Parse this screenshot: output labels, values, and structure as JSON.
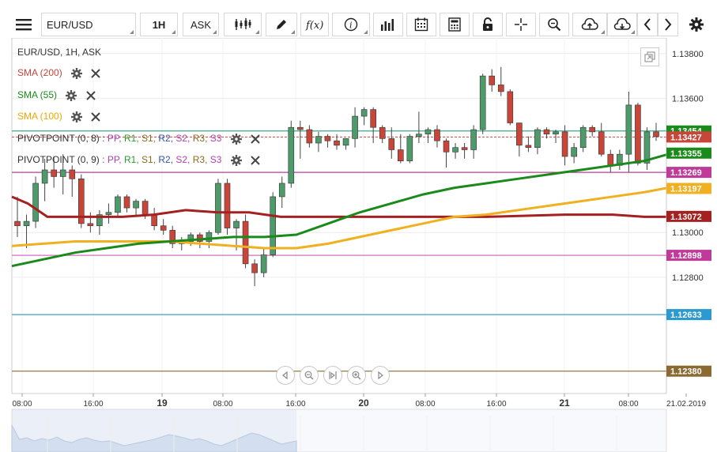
{
  "toolbar": {
    "menu_icon": "hamburger-menu-icon",
    "symbol": "EUR/USD",
    "timeframe": "1H",
    "price_type": "ASK",
    "buttons": [
      "candlestick-icon",
      "draw-pencil-icon",
      "function-icon",
      "info-icon",
      "bar-chart-icon",
      "calendar-icon",
      "calculator-icon",
      "lock-icon",
      "crosshair-icon",
      "zoom-icon",
      "cloud-upload-icon",
      "cloud-download-icon",
      "chevron-left-icon",
      "chevron-right-icon",
      "gear-icon"
    ]
  },
  "legend": {
    "title": "EUR/USD, 1H, ASK",
    "sma200": "SMA (200)",
    "sma55": "SMA (55)",
    "sma100": "SMA (100)",
    "pivot8_name": "PIVOTPOINT (0, 8)",
    "pivot9_name": "PIVOTPOINT (0, 9)",
    "pivot_sep": ":",
    "pivot_items": [
      "PP,",
      "R1,",
      "S1,",
      "R2,",
      "S2,",
      "R3,",
      "S3"
    ],
    "pivot_colors": [
      "#b040b0",
      "#2a9a2a",
      "#8a6a20",
      "#3355aa",
      "#b040b0",
      "#8a6a20",
      "#b040b0"
    ]
  },
  "colors": {
    "up": "#4e9a6a",
    "down": "#c8453a",
    "sma200": "#a52020",
    "sma55": "#1a8a1a",
    "sma100": "#f0b020"
  },
  "chart_data": {
    "type": "candlestick",
    "symbol": "EUR/USD",
    "timeframe": "1H",
    "y_ticks": [
      "1.13800",
      "1.13600",
      "1.13000",
      "1.12800"
    ],
    "ylim": [
      1.1228,
      1.1387
    ],
    "x_labels": [
      "08:00",
      "16:00",
      "19",
      "08:00",
      "16:00",
      "20",
      "08:00",
      "16:00",
      "21",
      "08:00",
      "21.02.2019"
    ],
    "price_tags": [
      {
        "label": "1.13454",
        "value": 1.13454,
        "color": "#1a8a1a",
        "line": "#3aaa8a"
      },
      {
        "label": "1.13427",
        "value": 1.13427,
        "color": "#c8453a",
        "line": ""
      },
      {
        "label": "1.13355",
        "value": 1.13355,
        "color": "#1a8a1a",
        "line": ""
      },
      {
        "label": "1.13269",
        "value": 1.13269,
        "color": "#c03a9a",
        "line": "#c03a9a"
      },
      {
        "label": "1.13197",
        "value": 1.13197,
        "color": "#f0b020",
        "line": ""
      },
      {
        "label": "1.13072",
        "value": 1.13072,
        "color": "#a52020",
        "line": ""
      },
      {
        "label": "1.12898",
        "value": 1.12898,
        "color": "#c03a9a",
        "line": "#d070c0"
      },
      {
        "label": "1.12633",
        "value": 1.12633,
        "color": "#2a9ad0",
        "line": "#3aa0c0"
      },
      {
        "label": "1.12380",
        "value": 1.1238,
        "color": "#8a6a30",
        "line": "#8a6a30"
      }
    ],
    "candles": [
      [
        1.1305,
        1.1316,
        1.1298,
        1.1303
      ],
      [
        1.1303,
        1.1308,
        1.1293,
        1.1305
      ],
      [
        1.1305,
        1.1325,
        1.1302,
        1.1322
      ],
      [
        1.1322,
        1.1333,
        1.1314,
        1.1328
      ],
      [
        1.1328,
        1.1334,
        1.132,
        1.1325
      ],
      [
        1.1325,
        1.1335,
        1.1317,
        1.1328
      ],
      [
        1.1328,
        1.133,
        1.1316,
        1.1324
      ],
      [
        1.1324,
        1.1326,
        1.1302,
        1.1304
      ],
      [
        1.1304,
        1.1309,
        1.13,
        1.1303
      ],
      [
        1.1303,
        1.131,
        1.1299,
        1.1308
      ],
      [
        1.1308,
        1.1313,
        1.1304,
        1.1309
      ],
      [
        1.1309,
        1.1317,
        1.1307,
        1.1316
      ],
      [
        1.1316,
        1.1317,
        1.1309,
        1.1311
      ],
      [
        1.1311,
        1.1315,
        1.1307,
        1.1314
      ],
      [
        1.1314,
        1.1315,
        1.1306,
        1.1308
      ],
      [
        1.1308,
        1.1311,
        1.1301,
        1.1303
      ],
      [
        1.1303,
        1.1306,
        1.1299,
        1.1301
      ],
      [
        1.1301,
        1.1303,
        1.1293,
        1.1295
      ],
      [
        1.1295,
        1.1298,
        1.1292,
        1.1296
      ],
      [
        1.1296,
        1.13,
        1.1294,
        1.1299
      ],
      [
        1.1299,
        1.13,
        1.1293,
        1.1296
      ],
      [
        1.1296,
        1.1301,
        1.1293,
        1.13
      ],
      [
        1.13,
        1.1324,
        1.1299,
        1.1322
      ],
      [
        1.1322,
        1.1324,
        1.1299,
        1.1302
      ],
      [
        1.1302,
        1.1306,
        1.1292,
        1.1305
      ],
      [
        1.1305,
        1.1308,
        1.1284,
        1.1286
      ],
      [
        1.1286,
        1.1288,
        1.1276,
        1.1282
      ],
      [
        1.1282,
        1.1293,
        1.128,
        1.129
      ],
      [
        1.129,
        1.1318,
        1.1289,
        1.1316
      ],
      [
        1.1316,
        1.1325,
        1.1311,
        1.1322
      ],
      [
        1.1322,
        1.135,
        1.132,
        1.1347
      ],
      [
        1.1347,
        1.135,
        1.1333,
        1.1346
      ],
      [
        1.1346,
        1.1348,
        1.1338,
        1.134
      ],
      [
        1.134,
        1.1345,
        1.1336,
        1.1343
      ],
      [
        1.1343,
        1.1344,
        1.1338,
        1.1341
      ],
      [
        1.1341,
        1.1344,
        1.1337,
        1.1339
      ],
      [
        1.1339,
        1.1342,
        1.1337,
        1.1342
      ],
      [
        1.1342,
        1.1356,
        1.1338,
        1.1352
      ],
      [
        1.1352,
        1.1356,
        1.1348,
        1.1355
      ],
      [
        1.1355,
        1.1356,
        1.134,
        1.1347
      ],
      [
        1.1347,
        1.1348,
        1.134,
        1.1342
      ],
      [
        1.1342,
        1.1347,
        1.1333,
        1.1337
      ],
      [
        1.1337,
        1.1344,
        1.1331,
        1.1332
      ],
      [
        1.1332,
        1.1344,
        1.1331,
        1.1343
      ],
      [
        1.1343,
        1.1354,
        1.134,
        1.1344
      ],
      [
        1.1344,
        1.1347,
        1.134,
        1.1346
      ],
      [
        1.1346,
        1.1348,
        1.1338,
        1.1341
      ],
      [
        1.1341,
        1.1342,
        1.1329,
        1.1336
      ],
      [
        1.1336,
        1.134,
        1.1333,
        1.1338
      ],
      [
        1.1338,
        1.134,
        1.1333,
        1.1337
      ],
      [
        1.1337,
        1.1348,
        1.1333,
        1.1346
      ],
      [
        1.1346,
        1.1371,
        1.1344,
        1.137
      ],
      [
        1.137,
        1.1373,
        1.1363,
        1.1366
      ],
      [
        1.1366,
        1.1374,
        1.1361,
        1.1363
      ],
      [
        1.1363,
        1.1364,
        1.1348,
        1.1349
      ],
      [
        1.1349,
        1.1349,
        1.1334,
        1.1339
      ],
      [
        1.1339,
        1.1343,
        1.1336,
        1.1338
      ],
      [
        1.1338,
        1.1347,
        1.1335,
        1.1346
      ],
      [
        1.1346,
        1.1347,
        1.1342,
        1.1344
      ],
      [
        1.1344,
        1.1346,
        1.134,
        1.1345
      ],
      [
        1.1345,
        1.1348,
        1.133,
        1.1334
      ],
      [
        1.1334,
        1.134,
        1.1331,
        1.1338
      ],
      [
        1.1338,
        1.1348,
        1.1336,
        1.1347
      ],
      [
        1.1347,
        1.1348,
        1.1343,
        1.1345
      ],
      [
        1.1345,
        1.1349,
        1.1334,
        1.1335
      ],
      [
        1.1335,
        1.1337,
        1.1327,
        1.133
      ],
      [
        1.133,
        1.1337,
        1.1328,
        1.1335
      ],
      [
        1.1335,
        1.1363,
        1.1327,
        1.1357
      ],
      [
        1.1357,
        1.1358,
        1.133,
        1.1331
      ],
      [
        1.1331,
        1.1347,
        1.1328,
        1.1345
      ],
      [
        1.1345,
        1.1349,
        1.1341,
        1.1343
      ]
    ],
    "sma200": [
      [
        0,
        1.1316
      ],
      [
        20,
        1.1313
      ],
      [
        45,
        1.1307
      ],
      [
        75,
        1.1307
      ],
      [
        100,
        1.1307
      ],
      [
        140,
        1.1307
      ],
      [
        180,
        1.1308
      ],
      [
        220,
        1.131
      ],
      [
        260,
        1.1309
      ],
      [
        300,
        1.1309
      ],
      [
        340,
        1.1307
      ],
      [
        400,
        1.1307
      ],
      [
        500,
        1.1307
      ],
      [
        600,
        1.1307
      ],
      [
        700,
        1.1308
      ],
      [
        760,
        1.1308
      ],
      [
        800,
        1.1307
      ],
      [
        830,
        1.1307
      ]
    ],
    "sma55": [
      [
        0,
        1.1285
      ],
      [
        40,
        1.1288
      ],
      [
        80,
        1.1291
      ],
      [
        120,
        1.1293
      ],
      [
        160,
        1.1295
      ],
      [
        200,
        1.1296
      ],
      [
        240,
        1.1297
      ],
      [
        280,
        1.1298
      ],
      [
        320,
        1.1298
      ],
      [
        360,
        1.1299
      ],
      [
        400,
        1.1304
      ],
      [
        440,
        1.1309
      ],
      [
        480,
        1.1313
      ],
      [
        520,
        1.1317
      ],
      [
        560,
        1.132
      ],
      [
        600,
        1.1322
      ],
      [
        640,
        1.1324
      ],
      [
        680,
        1.1326
      ],
      [
        720,
        1.1328
      ],
      [
        760,
        1.133
      ],
      [
        800,
        1.1332
      ],
      [
        830,
        1.1335
      ]
    ],
    "sma100": [
      [
        0,
        1.1294
      ],
      [
        40,
        1.1295
      ],
      [
        80,
        1.1296
      ],
      [
        120,
        1.1296
      ],
      [
        160,
        1.1296
      ],
      [
        200,
        1.1296
      ],
      [
        240,
        1.1295
      ],
      [
        280,
        1.1294
      ],
      [
        320,
        1.1293
      ],
      [
        360,
        1.1293
      ],
      [
        400,
        1.1295
      ],
      [
        440,
        1.1298
      ],
      [
        480,
        1.1301
      ],
      [
        520,
        1.1304
      ],
      [
        560,
        1.1307
      ],
      [
        600,
        1.1308
      ],
      [
        640,
        1.131
      ],
      [
        680,
        1.1312
      ],
      [
        720,
        1.1314
      ],
      [
        760,
        1.1316
      ],
      [
        800,
        1.1318
      ],
      [
        830,
        1.132
      ]
    ],
    "pivot_dashed": 1.13427
  },
  "nav_buttons": [
    "scroll-left-icon",
    "zoom-out-icon",
    "reset-zoom-icon",
    "zoom-in-icon",
    "scroll-right-icon"
  ]
}
